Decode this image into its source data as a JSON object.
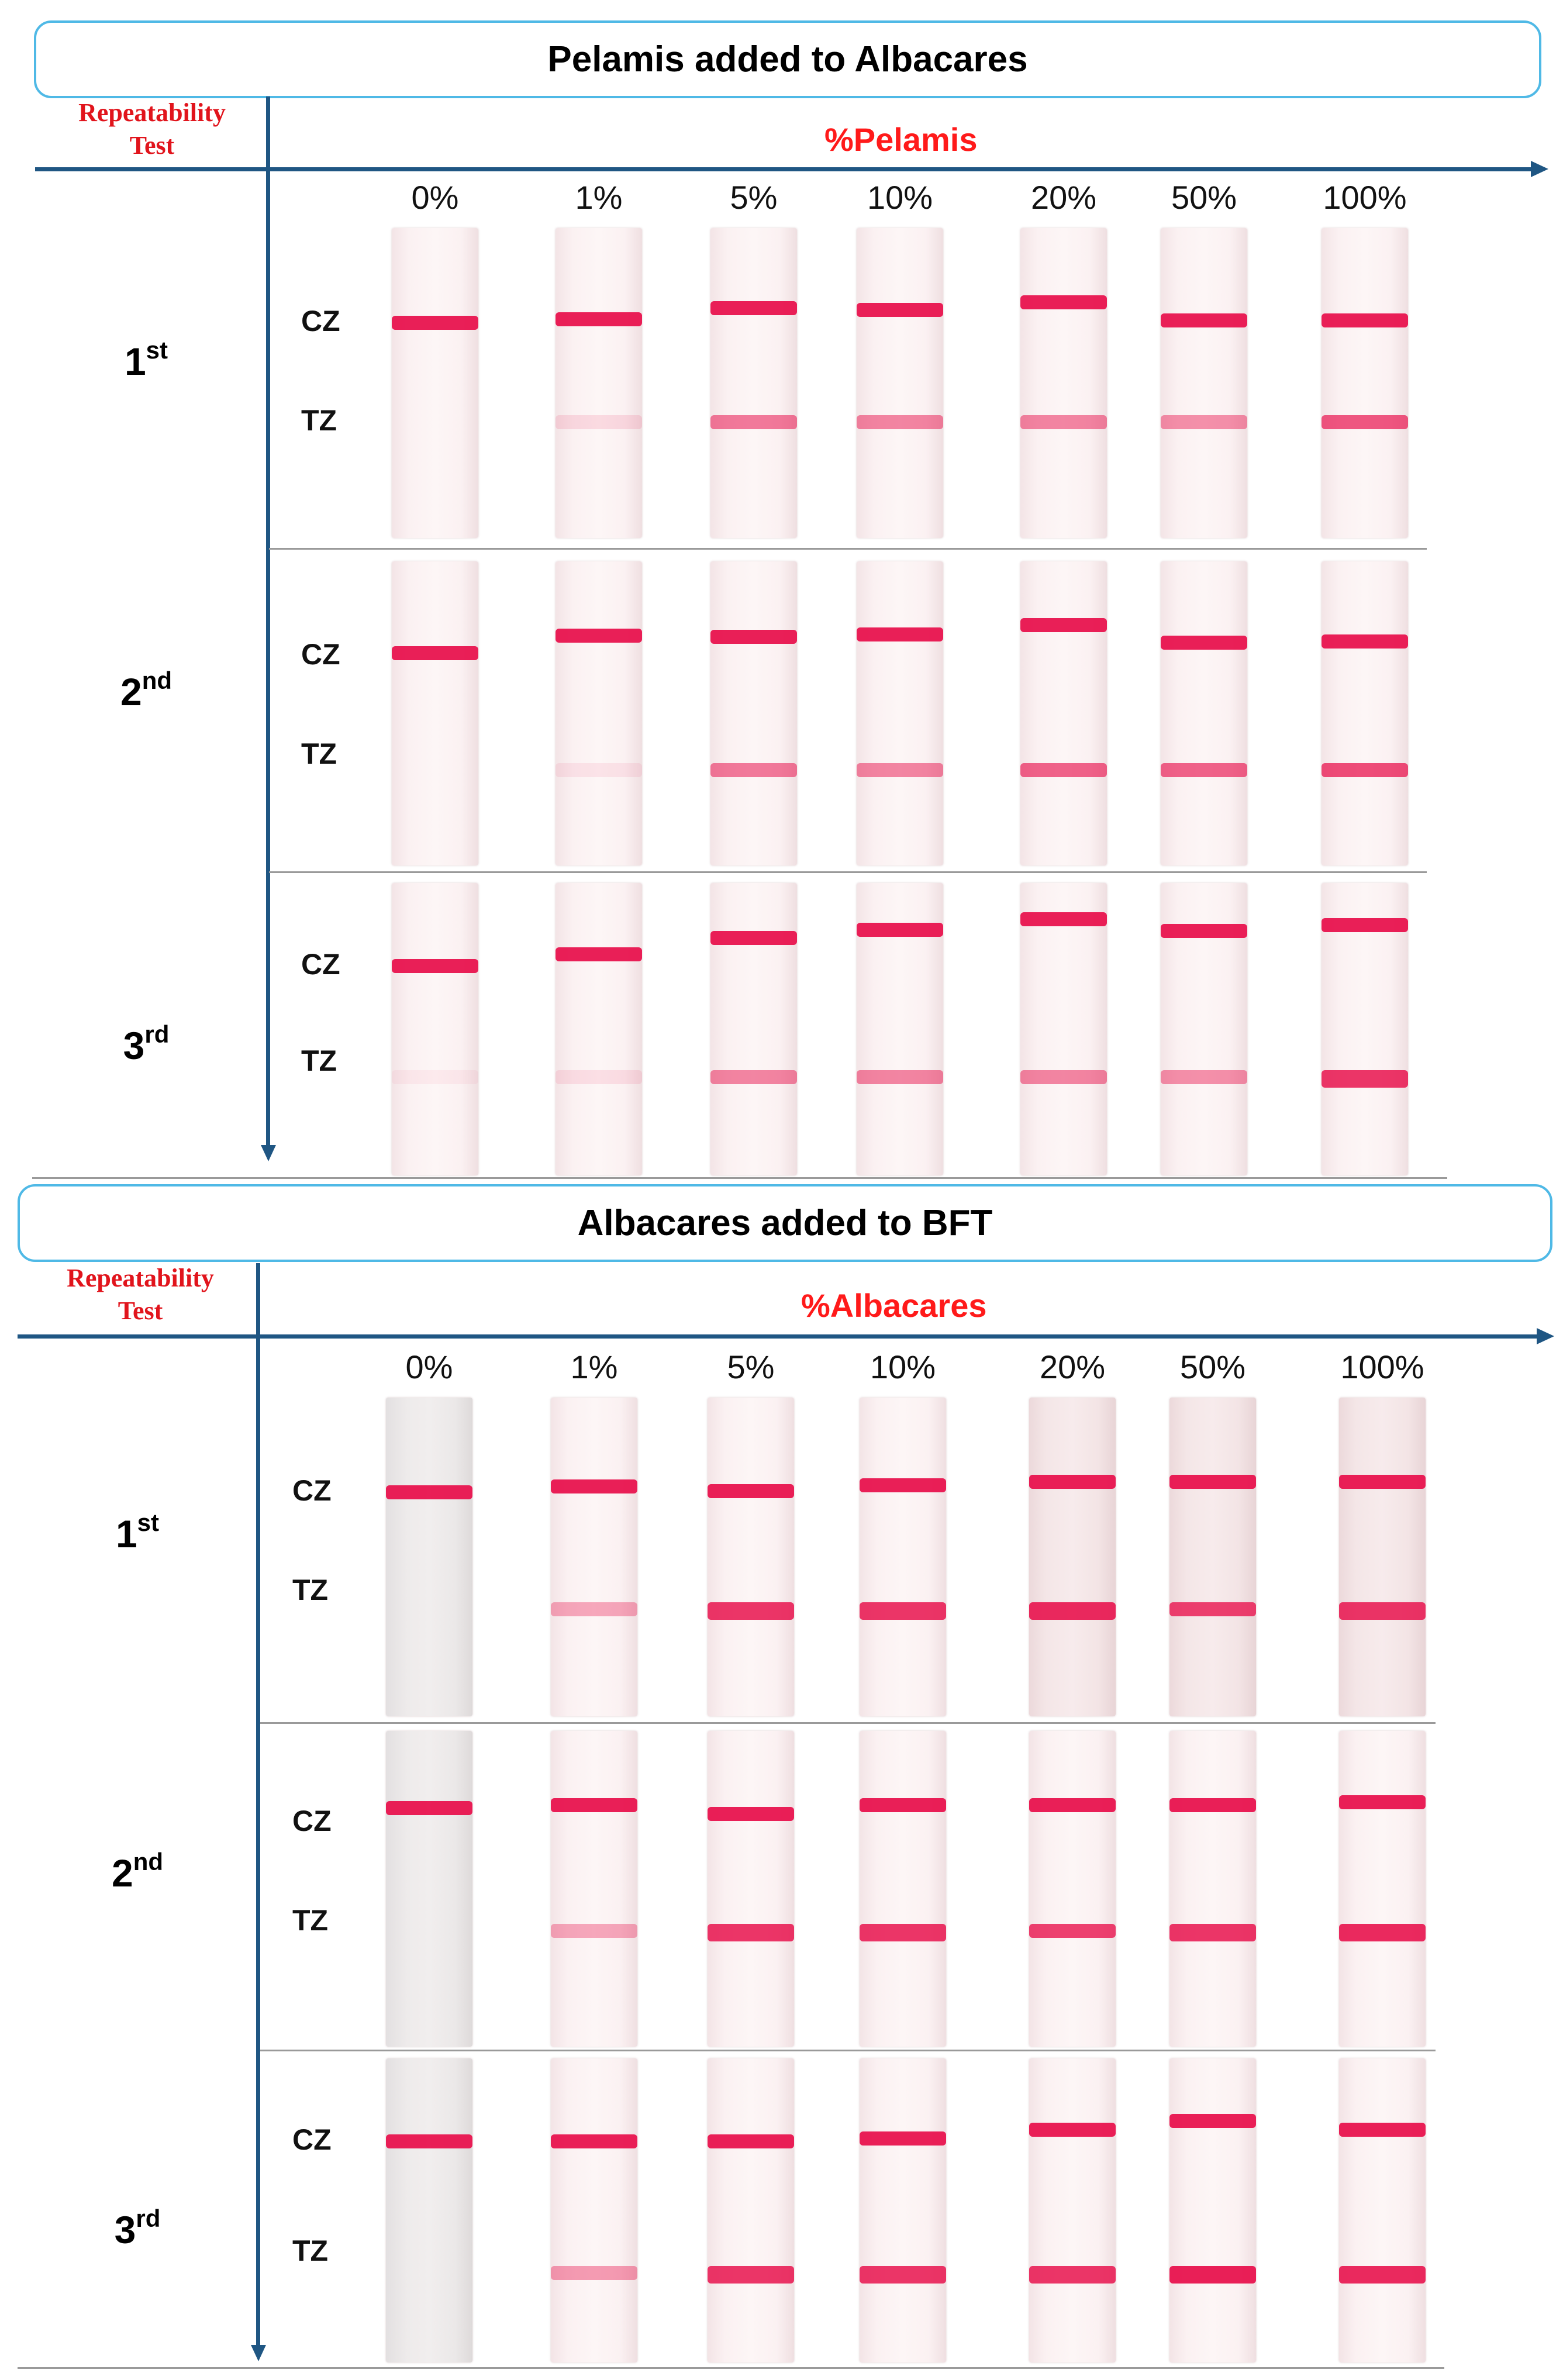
{
  "panels": [
    {
      "title": "Pelamis added to Albacares",
      "rep_label_1": "Repeatability",
      "rep_label_2": "Test",
      "axis_label": "%Pelamis",
      "percents": [
        "0%",
        "1%",
        "5%",
        "10%",
        "20%",
        "50%",
        "100%"
      ],
      "zones": {
        "control": "CZ",
        "test": "TZ"
      },
      "rows": [
        {
          "label": "1",
          "sup": "st",
          "tz_intensity": [
            0,
            0.12,
            0.55,
            0.5,
            0.5,
            0.45,
            0.7
          ]
        },
        {
          "label": "2",
          "sup": "nd",
          "tz_intensity": [
            0,
            0.08,
            0.55,
            0.5,
            0.65,
            0.65,
            0.75
          ]
        },
        {
          "label": "3",
          "sup": "rd",
          "tz_intensity": [
            0.05,
            0.1,
            0.5,
            0.5,
            0.5,
            0.45,
            0.85
          ]
        }
      ]
    },
    {
      "title": "Albacares added to BFT",
      "rep_label_1": "Repeatability",
      "rep_label_2": "Test",
      "axis_label": "%Albacares",
      "percents": [
        "0%",
        "1%",
        "5%",
        "10%",
        "20%",
        "50%",
        "100%"
      ],
      "zones": {
        "control": "CZ",
        "test": "TZ"
      },
      "rows": [
        {
          "label": "1",
          "sup": "st",
          "tz_intensity": [
            0,
            0.35,
            0.85,
            0.85,
            0.9,
            0.8,
            0.85
          ]
        },
        {
          "label": "2",
          "sup": "nd",
          "tz_intensity": [
            0,
            0.35,
            0.85,
            0.85,
            0.8,
            0.85,
            0.9
          ]
        },
        {
          "label": "3",
          "sup": "rd",
          "tz_intensity": [
            0,
            0.4,
            0.85,
            0.85,
            0.85,
            0.95,
            0.9
          ]
        }
      ]
    }
  ],
  "colors": {
    "band": "#e8134e",
    "axis": "#1f5683",
    "title_border": "#4fb9e6",
    "label_red": "#ff1a1a"
  }
}
